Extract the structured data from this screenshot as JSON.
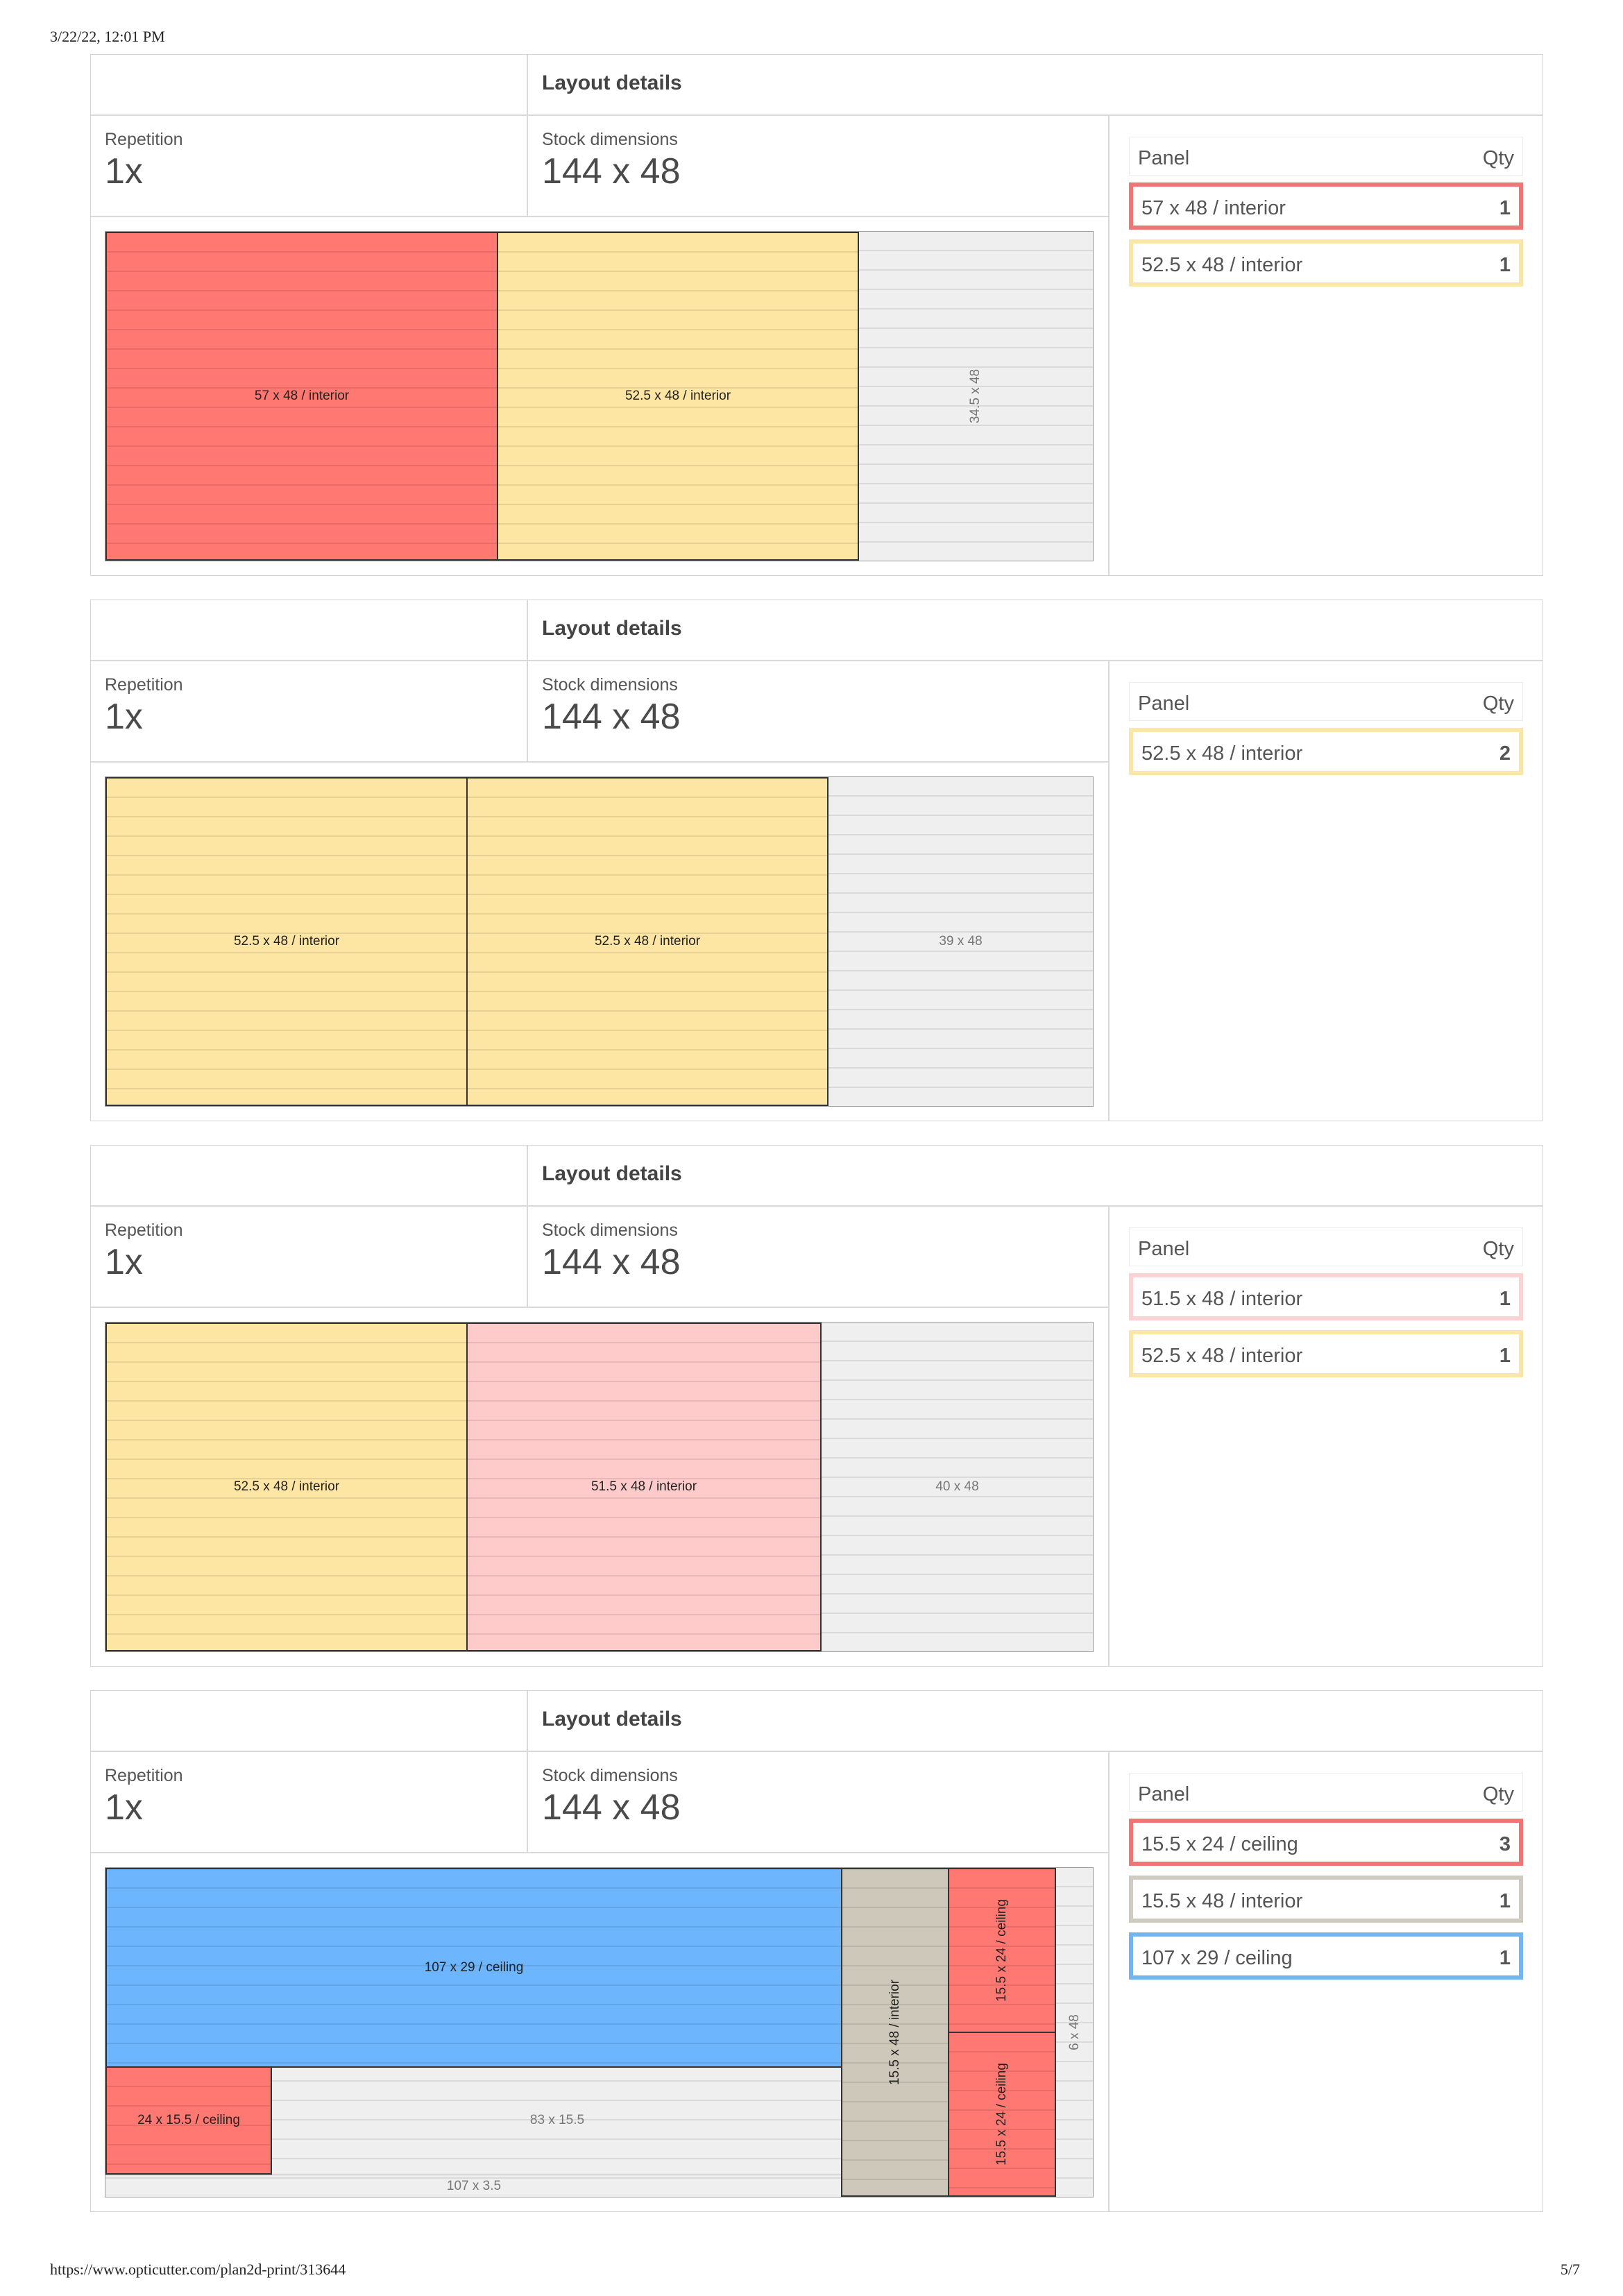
{
  "page": {
    "timestamp": "3/22/22, 12:01 PM",
    "url": "https://www.opticutter.com/plan2d-print/313644",
    "page_number": "5/7"
  },
  "labels": {
    "layout_details": "Layout details",
    "repetition": "Repetition",
    "stock_dimensions": "Stock dimensions",
    "panel": "Panel",
    "qty": "Qty"
  },
  "colors": {
    "interior_57": "#ff7872",
    "interior_52_5": "#fde6a3",
    "interior_51_5": "#ffcaca",
    "interior_15_5": "#cdc8ba",
    "ceiling_red": "#ff7872",
    "ceiling_blue": "#6db5fd",
    "offcut": "#efefef"
  },
  "layouts": [
    {
      "repetition": "1x",
      "stock": "144 x 48",
      "pieces": [
        {
          "label": "57 x 48 / interior"
        },
        {
          "label": "52.5 x 48 / interior"
        }
      ],
      "offcuts": [
        {
          "label": "34.5 x 48"
        }
      ],
      "panels": [
        {
          "label": "57 x 48 / interior",
          "qty": "1"
        },
        {
          "label": "52.5 x 48 / interior",
          "qty": "1"
        }
      ]
    },
    {
      "repetition": "1x",
      "stock": "144 x 48",
      "pieces": [
        {
          "label": "52.5 x 48 / interior"
        },
        {
          "label": "52.5 x 48 / interior"
        }
      ],
      "offcuts": [
        {
          "label": "39 x 48"
        }
      ],
      "panels": [
        {
          "label": "52.5 x 48 / interior",
          "qty": "2"
        }
      ]
    },
    {
      "repetition": "1x",
      "stock": "144 x 48",
      "pieces": [
        {
          "label": "52.5 x 48 / interior"
        },
        {
          "label": "51.5 x 48 / interior"
        }
      ],
      "offcuts": [
        {
          "label": "40 x 48"
        }
      ],
      "panels": [
        {
          "label": "51.5 x 48 / interior",
          "qty": "1"
        },
        {
          "label": "52.5 x 48 / interior",
          "qty": "1"
        }
      ]
    },
    {
      "repetition": "1x",
      "stock": "144 x 48",
      "pieces": [
        {
          "label": "107 x 29 / ceiling"
        },
        {
          "label": "24 x 15.5 / ceiling"
        },
        {
          "label": "15.5 x 48 / interior"
        },
        {
          "label": "15.5 x 24 / ceiling"
        },
        {
          "label": "15.5 x 24 / ceiling"
        }
      ],
      "offcuts": [
        {
          "label": "83 x 15.5"
        },
        {
          "label": "107 x 3.5"
        },
        {
          "label": "6 x 48"
        }
      ],
      "panels": [
        {
          "label": "15.5 x 24 / ceiling",
          "qty": "3"
        },
        {
          "label": "15.5 x 48 / interior",
          "qty": "1"
        },
        {
          "label": "107 x 29 / ceiling",
          "qty": "1"
        }
      ]
    }
  ]
}
